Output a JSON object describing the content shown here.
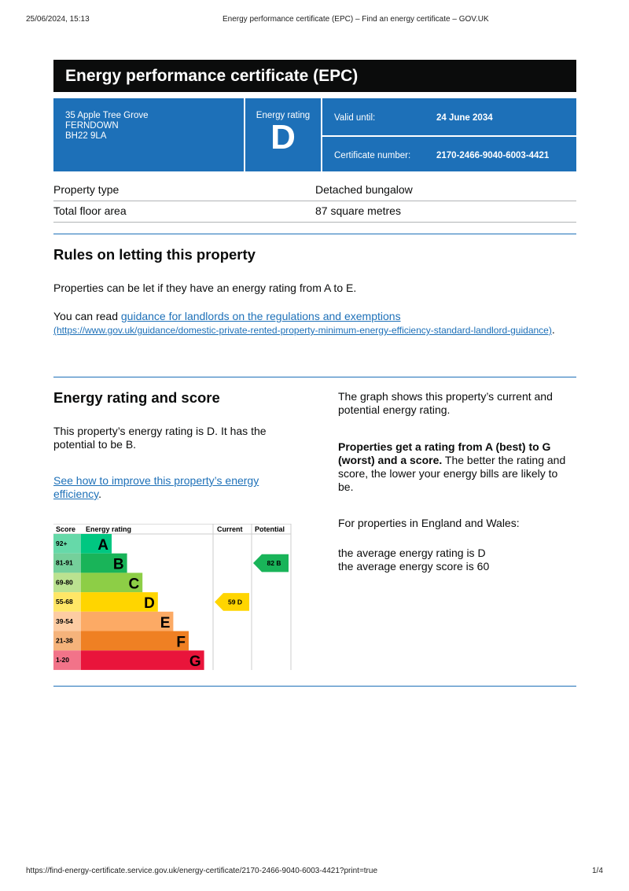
{
  "browser": {
    "datetime": "25/06/2024, 15:13",
    "page_title": "Energy performance certificate (EPC) – Find an energy certificate – GOV.UK",
    "url": "https://find-energy-certificate.service.gov.uk/energy-certificate/2170-2466-9040-6003-4421?print=true",
    "page_number": "1/4"
  },
  "certificate": {
    "title": "Energy performance certificate (EPC)",
    "address": [
      "35 Apple Tree Grove",
      "FERNDOWN",
      "BH22 9LA"
    ],
    "rating_label": "Energy rating",
    "rating": "D",
    "valid_label": "Valid until:",
    "valid_value": "24 June 2034",
    "number_label": "Certificate number:",
    "number_value": "2170-2466-9040-6003-4421"
  },
  "summary": [
    {
      "label": "Property type",
      "value": "Detached bungalow"
    },
    {
      "label": "Total floor area",
      "value": "87 square metres"
    }
  ],
  "letting": {
    "heading": "Rules on letting this property",
    "p1": "Properties can be let if they have an energy rating from A to E.",
    "p2_prefix": "You can read ",
    "link_text": "guidance for landlords on the regulations and exemptions",
    "link_url": "(https://www.gov.uk/guidance/domestic-private-rented-property-minimum-energy-efficiency-standard-landlord-guidance)",
    "p2_suffix": "."
  },
  "rating_section": {
    "heading": "Energy rating and score",
    "p1": "This property’s energy rating is D. It has the potential to be B.",
    "link_text": "See how to improve this property’s energy efficiency",
    "link_suffix": ".",
    "right_p1": "The graph shows this property’s current and potential energy rating.",
    "right_bold": "Properties get a rating from A (best) to G (worst) and a score.",
    "right_p2": " The better the rating and score, the lower your energy bills are likely to be.",
    "right_p3": "For properties in England and Wales:",
    "avg1": "the average energy rating is D",
    "avg2": "the average energy score is 60"
  },
  "chart_data": {
    "type": "table",
    "headers": [
      "Score",
      "Energy rating",
      "Current",
      "Potential"
    ],
    "bands": [
      {
        "score": "92+",
        "letter": "A",
        "color": "#00c781",
        "light": "#66d9a9"
      },
      {
        "score": "81-91",
        "letter": "B",
        "color": "#19b459",
        "light": "#75d09b"
      },
      {
        "score": "69-80",
        "letter": "C",
        "color": "#8dce46",
        "light": "#bbe290"
      },
      {
        "score": "55-68",
        "letter": "D",
        "color": "#ffd500",
        "light": "#ffe666"
      },
      {
        "score": "39-54",
        "letter": "E",
        "color": "#fcaa65",
        "light": "#fdcca3"
      },
      {
        "score": "21-38",
        "letter": "F",
        "color": "#ef8023",
        "light": "#f5b37b"
      },
      {
        "score": "1-20",
        "letter": "G",
        "color": "#e9153b",
        "light": "#f27389"
      }
    ],
    "current": {
      "score": 59,
      "letter": "D",
      "label": "59  D"
    },
    "potential": {
      "score": 82,
      "letter": "B",
      "label": "82  B"
    }
  }
}
